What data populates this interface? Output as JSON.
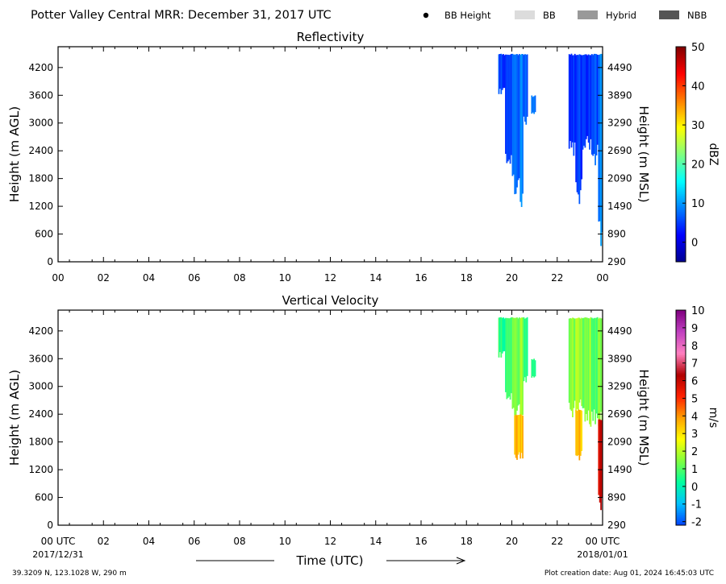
{
  "header": {
    "title": "Potter Valley Central MRR:  December 31, 2017 UTC",
    "legend": [
      {
        "label": "BB Height",
        "marker": "dot",
        "color": "#000000"
      },
      {
        "label": "BB",
        "marker": "swatch",
        "color": "#dcdcdc"
      },
      {
        "label": "Hybrid",
        "marker": "swatch",
        "color": "#999999"
      },
      {
        "label": "NBB",
        "marker": "swatch",
        "color": "#555555"
      }
    ]
  },
  "footer": {
    "location": "39.3209 N, 123.1028 W, 290 m",
    "creation": "Plot creation date: Aug 01, 2024 16:45:03 UTC",
    "date_start": "2017/12/31",
    "date_end": "2018/01/01",
    "xaxis_title": "Time (UTC)"
  },
  "chart_data": [
    {
      "type": "heatmap",
      "title": "Reflectivity",
      "ylabel": "Height (m AGL)",
      "ylabel_right": "Height (m MSL)",
      "x_ticks": [
        "00",
        "02",
        "04",
        "06",
        "08",
        "10",
        "12",
        "14",
        "16",
        "18",
        "20",
        "22",
        "00"
      ],
      "xlim_hours": [
        0,
        24
      ],
      "ylim": [
        0,
        4650
      ],
      "y_ticks": [
        0,
        600,
        1200,
        1800,
        2400,
        3000,
        3600,
        4200
      ],
      "y_ticks_right": [
        290,
        890,
        1490,
        2090,
        2690,
        3290,
        3890,
        4490
      ],
      "colorbar": {
        "label": "dBZ",
        "min": -5,
        "max": 50,
        "ticks": [
          0,
          10,
          20,
          30,
          40,
          50
        ],
        "colors": [
          "#00008f",
          "#0000ff",
          "#0080ff",
          "#00ffff",
          "#80ff80",
          "#ffff00",
          "#ff8000",
          "#ff0000",
          "#800000"
        ]
      },
      "echoes": [
        {
          "x_start": 19.4,
          "x_end": 19.7,
          "y_top": 4500,
          "y_bottom": 3700,
          "value": 5
        },
        {
          "x_start": 19.7,
          "x_end": 20.1,
          "y_top": 4500,
          "y_bottom": 2100,
          "value": 6
        },
        {
          "x_start": 20.1,
          "x_end": 20.5,
          "y_top": 4500,
          "y_bottom": 1500,
          "value": 8
        },
        {
          "x_start": 20.5,
          "x_end": 20.7,
          "y_top": 4500,
          "y_bottom": 3100,
          "value": 6
        },
        {
          "x_start": 20.85,
          "x_end": 21.05,
          "y_top": 3600,
          "y_bottom": 3200,
          "value": 9
        },
        {
          "x_start": 22.5,
          "x_end": 22.8,
          "y_top": 4500,
          "y_bottom": 2500,
          "value": 4
        },
        {
          "x_start": 22.8,
          "x_end": 23.1,
          "y_top": 4500,
          "y_bottom": 1500,
          "value": 5
        },
        {
          "x_start": 23.1,
          "x_end": 23.5,
          "y_top": 4500,
          "y_bottom": 2500,
          "value": 5
        },
        {
          "x_start": 23.5,
          "x_end": 23.8,
          "y_top": 4500,
          "y_bottom": 2300,
          "value": 6
        },
        {
          "x_start": 23.8,
          "x_end": 24.0,
          "y_top": 4500,
          "y_bottom": 450,
          "value": 10
        }
      ]
    },
    {
      "type": "heatmap",
      "title": "Vertical Velocity",
      "ylabel": "Height (m AGL)",
      "ylabel_right": "Height (m MSL)",
      "x_ticks": [
        "00 UTC",
        "02",
        "04",
        "06",
        "08",
        "10",
        "12",
        "14",
        "16",
        "18",
        "20",
        "22",
        "00 UTC"
      ],
      "xlim_hours": [
        0,
        24
      ],
      "ylim": [
        0,
        4650
      ],
      "y_ticks": [
        0,
        600,
        1200,
        1800,
        2400,
        3000,
        3600,
        4200
      ],
      "y_ticks_right": [
        290,
        890,
        1490,
        2090,
        2690,
        3290,
        3890,
        4490
      ],
      "colorbar": {
        "label": "m/s",
        "min": -2.2,
        "max": 10,
        "ticks": [
          -2,
          -1,
          0,
          1,
          2,
          3,
          4,
          5,
          6,
          7,
          8,
          9,
          10
        ],
        "colors": [
          "#0040ff",
          "#00c0ff",
          "#00ffa0",
          "#80ff40",
          "#ffff00",
          "#ffa000",
          "#ff2000",
          "#b00000",
          "#ff80c0",
          "#c040c0",
          "#800080"
        ]
      },
      "echoes": [
        {
          "x_start": 19.4,
          "x_end": 19.7,
          "y_top": 4500,
          "y_bottom": 3700,
          "value": 0.5
        },
        {
          "x_start": 19.7,
          "x_end": 20.1,
          "y_top": 4500,
          "y_bottom": 2700,
          "value": 1.0
        },
        {
          "x_start": 20.1,
          "x_end": 20.5,
          "y_top": 4500,
          "y_bottom": 2400,
          "value": 1.5
        },
        {
          "x_start": 20.1,
          "x_end": 20.5,
          "y_top": 2400,
          "y_bottom": 1500,
          "value": 3.5
        },
        {
          "x_start": 20.5,
          "x_end": 20.7,
          "y_top": 4500,
          "y_bottom": 3100,
          "value": 0.8
        },
        {
          "x_start": 20.85,
          "x_end": 21.05,
          "y_top": 3600,
          "y_bottom": 3200,
          "value": 0.6
        },
        {
          "x_start": 22.5,
          "x_end": 22.8,
          "y_top": 4500,
          "y_bottom": 2500,
          "value": 1.5
        },
        {
          "x_start": 22.8,
          "x_end": 23.1,
          "y_top": 4500,
          "y_bottom": 2500,
          "value": 2.0
        },
        {
          "x_start": 22.8,
          "x_end": 23.1,
          "y_top": 2500,
          "y_bottom": 1500,
          "value": 3.5
        },
        {
          "x_start": 23.1,
          "x_end": 23.5,
          "y_top": 4500,
          "y_bottom": 2300,
          "value": 1.5
        },
        {
          "x_start": 23.5,
          "x_end": 23.8,
          "y_top": 4500,
          "y_bottom": 2300,
          "value": 1.0
        },
        {
          "x_start": 23.8,
          "x_end": 24.0,
          "y_top": 4500,
          "y_bottom": 2300,
          "value": 1.5
        },
        {
          "x_start": 23.8,
          "x_end": 24.0,
          "y_top": 2300,
          "y_bottom": 450,
          "value": 6.0
        }
      ]
    }
  ]
}
